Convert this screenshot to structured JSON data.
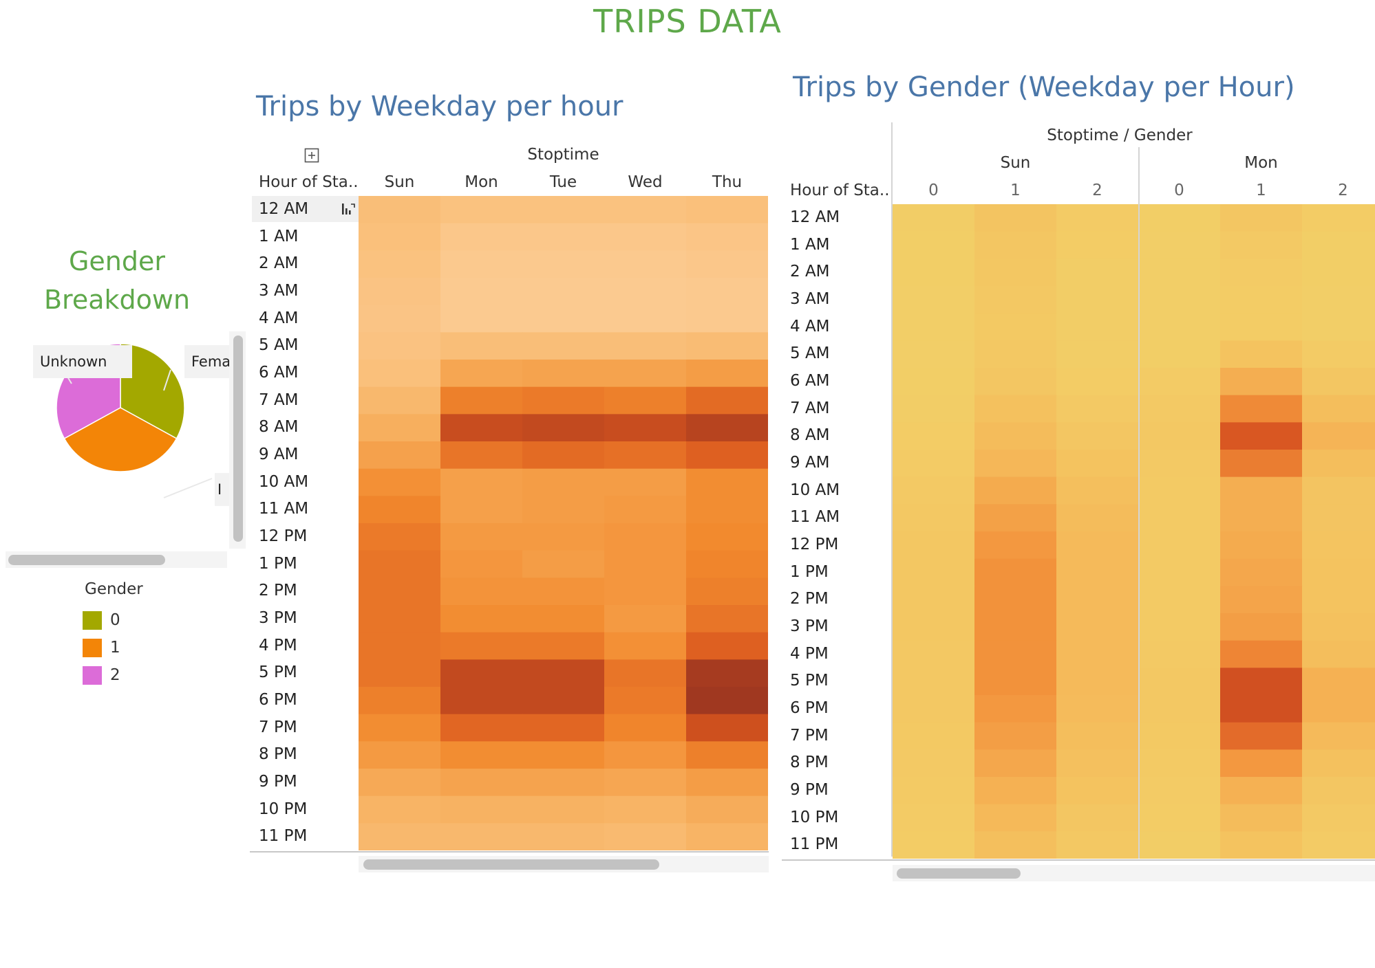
{
  "page_title": "TRIPS DATA",
  "pie_title_line1": "Gender",
  "pie_title_line2": "Breakdown",
  "pie_labels": {
    "unknown": "Unknown",
    "female": "Fema",
    "male": "I"
  },
  "legend": {
    "title": "Gender",
    "items": [
      {
        "label": "0",
        "color": "#a3a800"
      },
      {
        "label": "1",
        "color": "#f38507"
      },
      {
        "label": "2",
        "color": "#dc6cd8"
      }
    ]
  },
  "colors": {
    "title_green": "#5ea84a",
    "sheet_title_blue": "#4a76a8",
    "heat_orange_low": "#fdd9a0",
    "heat_orange_high": "#a03820",
    "heat_yellow_low": "#f2d068",
    "heat_yellow_high": "#c04020"
  },
  "icons": {
    "expand": "plus-box-icon",
    "sort": "sort-icon"
  },
  "weekday_sheet": {
    "title": "Trips by Weekday per hour",
    "column_header": "Stoptime",
    "row_header": "Hour of Sta..",
    "selected_row": "12 AM"
  },
  "gender_sheet": {
    "title": "Trips by Gender (Weekday per Hour)",
    "column_header": "Stoptime / Gender",
    "row_header": "Hour of Sta.."
  },
  "chart_data": [
    {
      "type": "pie",
      "categories": [
        "0",
        "1",
        "2"
      ],
      "values": [
        33,
        34,
        33
      ],
      "labels": [
        "Unknown",
        "Fema",
        "I"
      ],
      "legend_title": "Gender",
      "legend_position": "bottom-left"
    },
    {
      "type": "heatmap",
      "x": [
        "Sun",
        "Mon",
        "Tue",
        "Wed",
        "Thu"
      ],
      "y": [
        "12 AM",
        "1 AM",
        "2 AM",
        "3 AM",
        "4 AM",
        "5 AM",
        "6 AM",
        "7 AM",
        "8 AM",
        "9 AM",
        "10 AM",
        "11 AM",
        "12 PM",
        "1 PM",
        "2 PM",
        "3 PM",
        "4 PM",
        "5 PM",
        "6 PM",
        "7 PM",
        "8 PM",
        "9 PM",
        "10 PM",
        "11 PM"
      ],
      "values": [
        [
          0.22,
          0.18,
          0.18,
          0.18,
          0.2
        ],
        [
          0.2,
          0.12,
          0.12,
          0.12,
          0.14
        ],
        [
          0.18,
          0.1,
          0.1,
          0.1,
          0.12
        ],
        [
          0.16,
          0.09,
          0.09,
          0.09,
          0.1
        ],
        [
          0.15,
          0.09,
          0.09,
          0.09,
          0.1
        ],
        [
          0.17,
          0.22,
          0.22,
          0.22,
          0.24
        ],
        [
          0.2,
          0.42,
          0.44,
          0.44,
          0.48
        ],
        [
          0.28,
          0.64,
          0.66,
          0.64,
          0.72
        ],
        [
          0.36,
          0.86,
          0.88,
          0.86,
          0.92
        ],
        [
          0.45,
          0.68,
          0.72,
          0.7,
          0.76
        ],
        [
          0.56,
          0.46,
          0.48,
          0.48,
          0.58
        ],
        [
          0.62,
          0.46,
          0.48,
          0.5,
          0.58
        ],
        [
          0.66,
          0.5,
          0.5,
          0.52,
          0.6
        ],
        [
          0.68,
          0.52,
          0.48,
          0.52,
          0.62
        ],
        [
          0.68,
          0.54,
          0.54,
          0.52,
          0.64
        ],
        [
          0.68,
          0.58,
          0.58,
          0.5,
          0.68
        ],
        [
          0.68,
          0.66,
          0.66,
          0.56,
          0.76
        ],
        [
          0.68,
          0.88,
          0.88,
          0.68,
          0.98
        ],
        [
          0.64,
          0.88,
          0.88,
          0.66,
          1.0
        ],
        [
          0.58,
          0.74,
          0.74,
          0.62,
          0.84
        ],
        [
          0.5,
          0.58,
          0.58,
          0.52,
          0.64
        ],
        [
          0.4,
          0.44,
          0.44,
          0.42,
          0.48
        ],
        [
          0.32,
          0.34,
          0.34,
          0.32,
          0.38
        ],
        [
          0.28,
          0.28,
          0.28,
          0.26,
          0.32
        ]
      ],
      "title": "Trips by Weekday per hour",
      "xlabel": "Stoptime",
      "ylabel": "Hour of Sta.."
    },
    {
      "type": "heatmap",
      "x_groups": [
        "Sun",
        "Mon"
      ],
      "x_subgroups": [
        "0",
        "1",
        "2"
      ],
      "y": [
        "12 AM",
        "1 AM",
        "2 AM",
        "3 AM",
        "4 AM",
        "5 AM",
        "6 AM",
        "7 AM",
        "8 AM",
        "9 AM",
        "10 AM",
        "11 AM",
        "12 PM",
        "1 PM",
        "2 PM",
        "3 PM",
        "4 PM",
        "5 PM",
        "6 PM",
        "7 PM",
        "8 PM",
        "9 PM",
        "10 PM",
        "11 PM"
      ],
      "values": [
        [
          0.04,
          0.14,
          0.06,
          0.03,
          0.12,
          0.05
        ],
        [
          0.03,
          0.12,
          0.05,
          0.02,
          0.08,
          0.03
        ],
        [
          0.03,
          0.11,
          0.04,
          0.02,
          0.06,
          0.03
        ],
        [
          0.02,
          0.1,
          0.04,
          0.02,
          0.05,
          0.02
        ],
        [
          0.02,
          0.09,
          0.04,
          0.02,
          0.05,
          0.02
        ],
        [
          0.02,
          0.1,
          0.04,
          0.03,
          0.16,
          0.06
        ],
        [
          0.03,
          0.12,
          0.05,
          0.06,
          0.36,
          0.12
        ],
        [
          0.04,
          0.18,
          0.08,
          0.08,
          0.58,
          0.22
        ],
        [
          0.05,
          0.24,
          0.12,
          0.1,
          0.82,
          0.32
        ],
        [
          0.06,
          0.3,
          0.16,
          0.08,
          0.64,
          0.22
        ],
        [
          0.08,
          0.38,
          0.2,
          0.07,
          0.36,
          0.14
        ],
        [
          0.1,
          0.44,
          0.24,
          0.07,
          0.36,
          0.14
        ],
        [
          0.11,
          0.5,
          0.26,
          0.07,
          0.38,
          0.15
        ],
        [
          0.11,
          0.54,
          0.27,
          0.07,
          0.4,
          0.16
        ],
        [
          0.11,
          0.54,
          0.27,
          0.07,
          0.42,
          0.16
        ],
        [
          0.11,
          0.54,
          0.27,
          0.07,
          0.46,
          0.18
        ],
        [
          0.1,
          0.54,
          0.27,
          0.08,
          0.6,
          0.22
        ],
        [
          0.1,
          0.54,
          0.26,
          0.1,
          0.88,
          0.34
        ],
        [
          0.1,
          0.5,
          0.25,
          0.1,
          0.88,
          0.34
        ],
        [
          0.09,
          0.46,
          0.22,
          0.09,
          0.72,
          0.26
        ],
        [
          0.08,
          0.4,
          0.19,
          0.07,
          0.5,
          0.18
        ],
        [
          0.07,
          0.34,
          0.16,
          0.06,
          0.34,
          0.12
        ],
        [
          0.06,
          0.28,
          0.12,
          0.05,
          0.24,
          0.08
        ],
        [
          0.05,
          0.2,
          0.1,
          0.04,
          0.16,
          0.06
        ]
      ],
      "title": "Trips by Gender (Weekday per Hour)",
      "xlabel": "Stoptime / Gender",
      "ylabel": "Hour of Sta.."
    }
  ]
}
